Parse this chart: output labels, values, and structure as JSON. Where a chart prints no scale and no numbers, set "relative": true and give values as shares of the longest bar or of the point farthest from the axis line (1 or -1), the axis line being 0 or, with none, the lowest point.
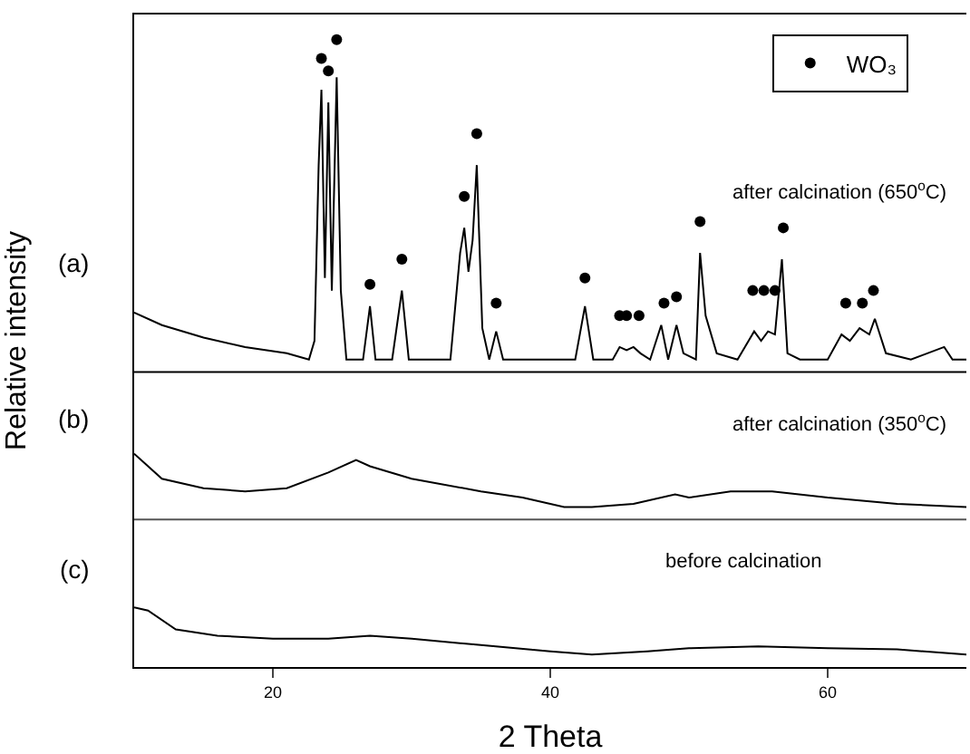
{
  "chart_data": {
    "type": "line",
    "relative": true,
    "xlabel": "2 Theta",
    "ylabel": "Relative intensity",
    "xlim": [
      10,
      70
    ],
    "xticks": [
      20,
      40,
      60
    ],
    "legend": "top right",
    "annotations": [
      "(a)",
      "(b)",
      "(c)",
      "after calcination (650$^{o}$C)",
      "after calcination (350$^{o}$C)",
      "before calcination"
    ],
    "ref_lines": [
      {
        "axis": "y",
        "value": 0.47,
        "color": "#000000"
      },
      {
        "axis": "y",
        "value": 0.235,
        "color": "#555555"
      }
    ],
    "series": [
      {
        "color": "#000000",
        "marker": "none",
        "x": [
          10,
          12,
          15,
          18,
          21,
          22.6,
          23.0,
          23.3,
          23.5,
          23.75,
          24.0,
          24.25,
          24.6,
          24.9,
          25.3,
          26.5,
          27.0,
          27.4,
          28.6,
          29.3,
          29.8,
          32.8,
          33.5,
          33.8,
          34.1,
          34.4,
          34.7,
          35.1,
          35.6,
          36.1,
          36.6,
          41.8,
          42.5,
          43.1,
          44.5,
          45.0,
          45.5,
          46.0,
          46.5,
          47.2,
          48.0,
          48.5,
          49.1,
          49.6,
          50.5,
          50.8,
          51.2,
          52.0,
          53.5,
          54.3,
          54.7,
          55.2,
          55.7,
          56.2,
          56.7,
          57.1,
          58,
          60.0,
          61.0,
          61.6,
          62.3,
          63.0,
          63.4,
          64.2,
          66,
          68.4,
          69,
          70
        ],
        "values": [
          0.565,
          0.545,
          0.525,
          0.51,
          0.5,
          0.49,
          0.52,
          0.8,
          0.92,
          0.62,
          0.9,
          0.6,
          0.94,
          0.6,
          0.49,
          0.49,
          0.575,
          0.49,
          0.49,
          0.6,
          0.49,
          0.49,
          0.66,
          0.7,
          0.63,
          0.68,
          0.8,
          0.54,
          0.49,
          0.535,
          0.49,
          0.49,
          0.575,
          0.49,
          0.49,
          0.51,
          0.505,
          0.51,
          0.5,
          0.49,
          0.545,
          0.49,
          0.545,
          0.5,
          0.49,
          0.66,
          0.56,
          0.5,
          0.49,
          0.52,
          0.535,
          0.52,
          0.535,
          0.53,
          0.65,
          0.5,
          0.49,
          0.49,
          0.53,
          0.52,
          0.54,
          0.53,
          0.555,
          0.5,
          0.49,
          0.51,
          0.49,
          0.49
        ]
      },
      {
        "color": "#000000",
        "marker": "none",
        "x": [
          10,
          12,
          15,
          18,
          21,
          24,
          26,
          27,
          30,
          35,
          38,
          41,
          43,
          46,
          49,
          50,
          53,
          56,
          60,
          65,
          70
        ],
        "values": [
          0.34,
          0.3,
          0.285,
          0.28,
          0.285,
          0.31,
          0.33,
          0.32,
          0.3,
          0.28,
          0.27,
          0.255,
          0.255,
          0.26,
          0.275,
          0.27,
          0.28,
          0.28,
          0.27,
          0.26,
          0.255
        ]
      },
      {
        "color": "#000000",
        "marker": "none",
        "x": [
          10,
          11,
          13,
          16,
          20,
          24,
          27,
          30,
          35,
          40,
          43,
          47,
          50,
          55,
          60,
          65,
          70
        ],
        "values": [
          0.095,
          0.09,
          0.06,
          0.05,
          0.045,
          0.045,
          0.05,
          0.045,
          0.035,
          0.025,
          0.02,
          0.025,
          0.03,
          0.033,
          0.03,
          0.028,
          0.02
        ]
      },
      {
        "type": "scatter",
        "name": "WO₃",
        "color": "#000000",
        "marker": "circle",
        "x": [
          23.5,
          24.0,
          24.6,
          27.0,
          29.3,
          33.8,
          34.7,
          36.1,
          42.5,
          45.0,
          45.5,
          46.4,
          48.2,
          49.1,
          50.8,
          54.6,
          55.4,
          56.2,
          56.8,
          61.3,
          62.5,
          63.3
        ],
        "values": [
          0.97,
          0.95,
          1.0,
          0.61,
          0.65,
          0.75,
          0.85,
          0.58,
          0.62,
          0.56,
          0.56,
          0.56,
          0.58,
          0.59,
          0.71,
          0.6,
          0.6,
          0.6,
          0.7,
          0.58,
          0.58,
          0.6
        ]
      }
    ]
  }
}
